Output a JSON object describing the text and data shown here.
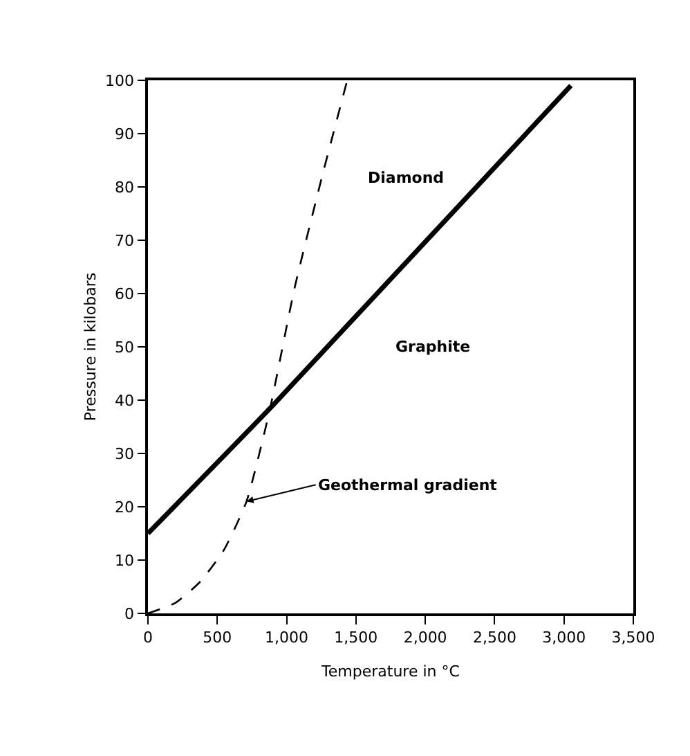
{
  "chart_data": {
    "type": "line",
    "xlabel": "Temperature in °C",
    "ylabel": "Pressure in kilobars",
    "xlim": [
      0,
      3500
    ],
    "ylim": [
      0,
      100
    ],
    "xticks": [
      0,
      500,
      {
        "value": 1000,
        "label": "1,000"
      },
      {
        "value": 1500,
        "label": "1,500"
      },
      {
        "value": 2000,
        "label": "2,000"
      },
      {
        "value": 2500,
        "label": "2,500"
      },
      {
        "value": 3000,
        "label": "3,000"
      },
      {
        "value": 3500,
        "label": "3,500"
      }
    ],
    "yticks": [
      0,
      10,
      20,
      30,
      40,
      50,
      60,
      70,
      80,
      90,
      100
    ],
    "marker": "none",
    "series": [
      {
        "color": "#000000",
        "line_style": "solid",
        "x": [
          0,
          900,
          3050
        ],
        "values": [
          15,
          39,
          99
        ]
      },
      {
        "color": "#000000",
        "line_style": "dashed",
        "x": [
          0,
          200,
          379,
          550,
          711,
          877,
          1057,
          1256,
          1437
        ],
        "values": [
          0,
          2,
          6,
          12,
          21,
          38,
          61,
          82,
          100
        ]
      }
    ],
    "annotations": [
      "Diamond",
      "Graphite",
      {
        "text": "Geothermal gradient",
        "x": 711,
        "y": 21
      }
    ]
  }
}
